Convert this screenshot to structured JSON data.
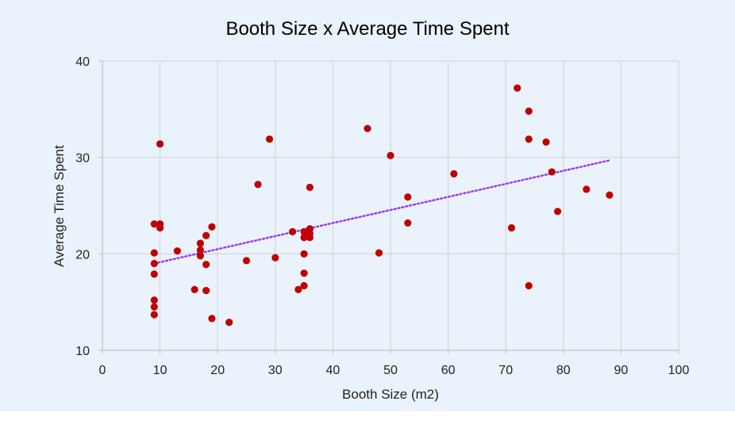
{
  "chart_data": {
    "type": "scatter",
    "title": "Booth Size x Average Time Spent",
    "xlabel": "Booth Size (m2)",
    "ylabel": "Average Time Spent",
    "xlim": [
      0,
      100
    ],
    "ylim": [
      10,
      40
    ],
    "xticks": [
      0,
      10,
      20,
      30,
      40,
      50,
      60,
      70,
      80,
      90,
      100
    ],
    "yticks": [
      10,
      20,
      30,
      40
    ],
    "grid": true,
    "legend": "none",
    "colors": {
      "points": "#c00000",
      "trendline": "#9933ff",
      "grid": "#d0d0d0",
      "axis": "#bfbfbf",
      "background": "#eaf3fb"
    },
    "series": [
      {
        "points": [
          [
            9,
            23.1
          ],
          [
            9,
            20.1
          ],
          [
            9,
            19.0
          ],
          [
            9,
            17.9
          ],
          [
            9,
            15.2
          ],
          [
            9,
            14.5
          ],
          [
            9,
            13.7
          ],
          [
            10,
            31.4
          ],
          [
            10,
            23.1
          ],
          [
            10,
            22.7
          ],
          [
            13,
            20.3
          ],
          [
            16,
            16.3
          ],
          [
            17,
            21.1
          ],
          [
            17,
            20.4
          ],
          [
            17,
            19.8
          ],
          [
            18,
            21.9
          ],
          [
            18,
            18.9
          ],
          [
            18,
            16.2
          ],
          [
            19,
            22.8
          ],
          [
            19,
            13.3
          ],
          [
            22,
            12.9
          ],
          [
            25,
            19.3
          ],
          [
            27,
            27.2
          ],
          [
            29,
            31.9
          ],
          [
            30,
            19.6
          ],
          [
            33,
            22.3
          ],
          [
            34,
            16.3
          ],
          [
            35,
            22.3
          ],
          [
            35,
            21.7
          ],
          [
            35,
            20.0
          ],
          [
            35,
            18.0
          ],
          [
            35,
            16.7
          ],
          [
            36,
            26.9
          ],
          [
            36,
            22.6
          ],
          [
            36,
            22.1
          ],
          [
            36,
            21.7
          ],
          [
            46,
            33.0
          ],
          [
            48,
            20.1
          ],
          [
            50,
            30.2
          ],
          [
            53,
            25.9
          ],
          [
            53,
            23.2
          ],
          [
            61,
            28.3
          ],
          [
            71,
            22.7
          ],
          [
            72,
            37.2
          ],
          [
            74,
            34.8
          ],
          [
            74,
            31.9
          ],
          [
            74,
            16.7
          ],
          [
            77,
            31.6
          ],
          [
            78,
            28.5
          ],
          [
            79,
            24.4
          ],
          [
            84,
            26.7
          ],
          [
            88,
            26.1
          ]
        ]
      }
    ],
    "trendline": {
      "style": "dotted",
      "x": [
        9,
        88
      ],
      "y": [
        19.0,
        29.7
      ]
    }
  }
}
